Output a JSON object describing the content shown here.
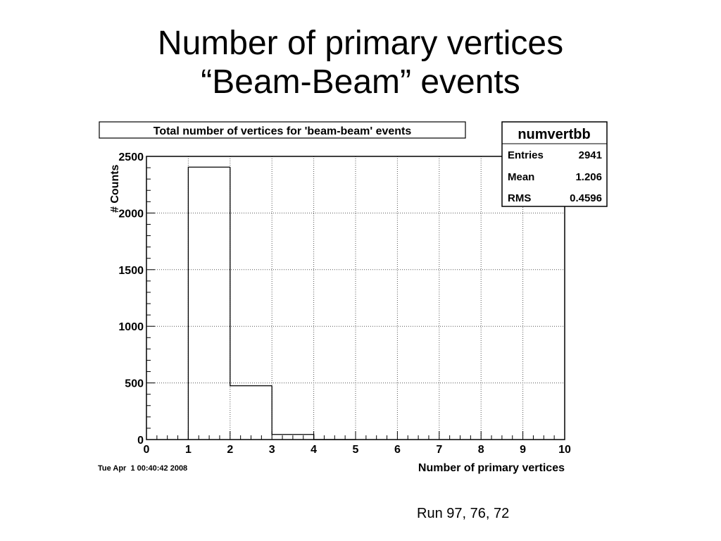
{
  "slide": {
    "title_line1": "Number of primary vertices",
    "title_line2": "“Beam-Beam” events",
    "caption": "Run 97, 76, 72"
  },
  "chart_data": {
    "type": "bar",
    "title": "Total number of vertices for 'beam-beam' events",
    "xlabel": "Number of primary vertices",
    "ylabel": "# Counts",
    "xlim": [
      0,
      10
    ],
    "ylim": [
      0,
      2500
    ],
    "x_ticks": [
      "0",
      "1",
      "2",
      "3",
      "4",
      "5",
      "6",
      "7",
      "8",
      "9",
      "10"
    ],
    "y_ticks": [
      "0",
      "500",
      "1000",
      "1500",
      "2000",
      "2500"
    ],
    "grid": true,
    "bins": [
      {
        "low": 0,
        "high": 1,
        "value": 0
      },
      {
        "low": 1,
        "high": 2,
        "value": 2405
      },
      {
        "low": 2,
        "high": 3,
        "value": 475
      },
      {
        "low": 3,
        "high": 4,
        "value": 45
      },
      {
        "low": 4,
        "high": 5,
        "value": 0
      },
      {
        "low": 5,
        "high": 6,
        "value": 0
      },
      {
        "low": 6,
        "high": 7,
        "value": 0
      },
      {
        "low": 7,
        "high": 8,
        "value": 0
      },
      {
        "low": 8,
        "high": 9,
        "value": 0
      },
      {
        "low": 9,
        "high": 10,
        "value": 0
      }
    ],
    "stats_box": {
      "name": "numvertbb",
      "rows": [
        {
          "label": "Entries",
          "value": "2941"
        },
        {
          "label": "Mean",
          "value": "1.206"
        },
        {
          "label": "RMS",
          "value": "0.4596"
        }
      ]
    },
    "date_stamp": "Tue Apr  1 00:40:42 2008"
  }
}
